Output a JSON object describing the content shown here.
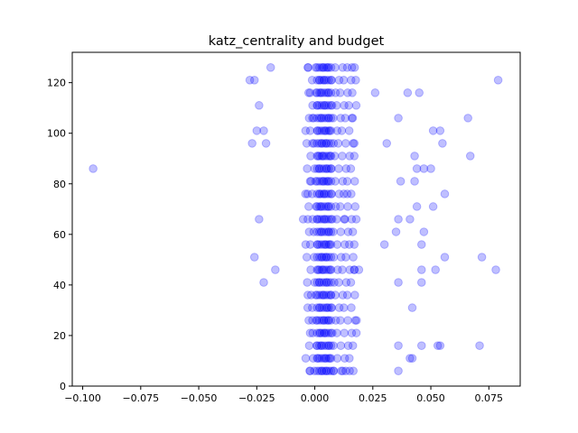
{
  "chart_data": {
    "type": "scatter",
    "title": "katz_centrality and budget",
    "xlabel": "",
    "ylabel": "",
    "xlim": [
      -0.1045,
      0.0885
    ],
    "ylim": [
      0,
      132
    ],
    "grid": false,
    "legend": null,
    "marker_color": "#0000ff",
    "marker_alpha": 0.25,
    "x_ticks": [
      -0.1,
      -0.075,
      -0.05,
      -0.025,
      0.0,
      0.025,
      0.05,
      0.075
    ],
    "x_tick_labels": [
      "−0.100",
      "−0.075",
      "−0.050",
      "−0.025",
      "0.000",
      "0.025",
      "0.050",
      "0.075"
    ],
    "y_ticks": [
      0,
      20,
      40,
      60,
      80,
      100,
      120
    ],
    "y_tick_labels": [
      "0",
      "20",
      "40",
      "60",
      "80",
      "100",
      "120"
    ],
    "y_levels": [
      6,
      11,
      16,
      21,
      26,
      31,
      36,
      41,
      46,
      51,
      56,
      61,
      66,
      71,
      76,
      81,
      86,
      91,
      96,
      101,
      106,
      111,
      116,
      121,
      126
    ],
    "core_x_values": [
      0.001,
      0.002,
      0.003,
      0.004,
      0.005,
      0.006,
      0.007
    ],
    "dense_band_x_range": [
      -0.004,
      0.018
    ],
    "outliers": [
      {
        "x": -0.0955,
        "y": 86
      },
      {
        "x": -0.019,
        "y": 126
      },
      {
        "x": -0.003,
        "y": 126
      },
      {
        "x": 0.016,
        "y": 126
      },
      {
        "x": -0.026,
        "y": 121
      },
      {
        "x": -0.028,
        "y": 121
      },
      {
        "x": 0.026,
        "y": 116
      },
      {
        "x": 0.04,
        "y": 116
      },
      {
        "x": 0.045,
        "y": 116
      },
      {
        "x": 0.079,
        "y": 121
      },
      {
        "x": -0.024,
        "y": 111
      },
      {
        "x": 0.036,
        "y": 106
      },
      {
        "x": 0.066,
        "y": 106
      },
      {
        "x": -0.025,
        "y": 101
      },
      {
        "x": -0.022,
        "y": 101
      },
      {
        "x": 0.051,
        "y": 101
      },
      {
        "x": 0.054,
        "y": 101
      },
      {
        "x": -0.027,
        "y": 96
      },
      {
        "x": -0.021,
        "y": 96
      },
      {
        "x": 0.031,
        "y": 96
      },
      {
        "x": 0.055,
        "y": 96
      },
      {
        "x": 0.043,
        "y": 91
      },
      {
        "x": 0.067,
        "y": 91
      },
      {
        "x": 0.044,
        "y": 86
      },
      {
        "x": 0.047,
        "y": 86
      },
      {
        "x": 0.05,
        "y": 86
      },
      {
        "x": 0.037,
        "y": 81
      },
      {
        "x": 0.043,
        "y": 81
      },
      {
        "x": -0.004,
        "y": 76
      },
      {
        "x": 0.056,
        "y": 76
      },
      {
        "x": 0.044,
        "y": 71
      },
      {
        "x": 0.051,
        "y": 71
      },
      {
        "x": -0.024,
        "y": 66
      },
      {
        "x": -0.005,
        "y": 66
      },
      {
        "x": -0.003,
        "y": 66
      },
      {
        "x": 0.036,
        "y": 66
      },
      {
        "x": 0.041,
        "y": 66
      },
      {
        "x": 0.035,
        "y": 61
      },
      {
        "x": 0.047,
        "y": 61
      },
      {
        "x": 0.03,
        "y": 56
      },
      {
        "x": 0.046,
        "y": 56
      },
      {
        "x": -0.026,
        "y": 51
      },
      {
        "x": 0.056,
        "y": 51
      },
      {
        "x": 0.072,
        "y": 51
      },
      {
        "x": -0.017,
        "y": 46
      },
      {
        "x": 0.046,
        "y": 46
      },
      {
        "x": 0.052,
        "y": 46
      },
      {
        "x": 0.078,
        "y": 46
      },
      {
        "x": -0.022,
        "y": 41
      },
      {
        "x": 0.036,
        "y": 41
      },
      {
        "x": 0.046,
        "y": 41
      },
      {
        "x": -0.003,
        "y": 36
      },
      {
        "x": 0.042,
        "y": 31
      },
      {
        "x": 0.036,
        "y": 16
      },
      {
        "x": 0.046,
        "y": 16
      },
      {
        "x": 0.053,
        "y": 16
      },
      {
        "x": 0.054,
        "y": 16
      },
      {
        "x": 0.071,
        "y": 16
      },
      {
        "x": 0.041,
        "y": 11
      },
      {
        "x": 0.042,
        "y": 11
      },
      {
        "x": -0.002,
        "y": 6
      },
      {
        "x": 0.015,
        "y": 6
      },
      {
        "x": 0.036,
        "y": 6
      }
    ],
    "extra_band_points": [
      {
        "x": -0.002,
        "y": 116
      },
      {
        "x": -0.001,
        "y": 106
      },
      {
        "x": 0.016,
        "y": 106
      },
      {
        "x": -0.001,
        "y": 96
      },
      {
        "x": 0.017,
        "y": 96
      },
      {
        "x": -0.002,
        "y": 81
      },
      {
        "x": 0.014,
        "y": 76
      },
      {
        "x": 0.013,
        "y": 66
      },
      {
        "x": 0.017,
        "y": 56
      },
      {
        "x": 0.017,
        "y": 46
      },
      {
        "x": 0.019,
        "y": 46
      },
      {
        "x": -0.001,
        "y": 26
      },
      {
        "x": 0.018,
        "y": 26
      },
      {
        "x": -0.002,
        "y": 21
      },
      {
        "x": 0.008,
        "y": 6
      },
      {
        "x": 0.012,
        "y": 6
      }
    ]
  }
}
